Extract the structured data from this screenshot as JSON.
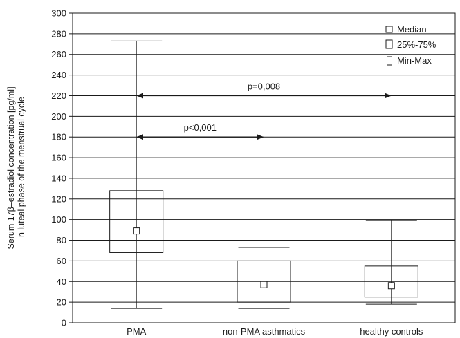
{
  "chart_data": {
    "type": "boxplot",
    "categories": [
      "PMA",
      "non-PMA asthmatics",
      "healthy controls"
    ],
    "series": [
      {
        "category": "PMA",
        "min": 14,
        "q1": 68,
        "median": 89,
        "q3": 128,
        "max": 273
      },
      {
        "category": "non-PMA asthmatics",
        "min": 14,
        "q1": 20,
        "median": 37,
        "q3": 60,
        "max": 73
      },
      {
        "category": "healthy controls",
        "min": 18,
        "q1": 25,
        "median": 36,
        "q3": 55,
        "max": 99
      }
    ],
    "ylabel_line1": "Serum 17β–estradiol concentration [pg/ml]",
    "ylabel_line2": "in luteal phase of the menstrual cycle",
    "ylim": [
      0,
      300
    ],
    "yticks": [
      0,
      20,
      40,
      60,
      80,
      100,
      120,
      140,
      160,
      180,
      200,
      220,
      240,
      260,
      280,
      300
    ],
    "grid": true,
    "legend": {
      "placement": "top-right",
      "items": [
        "Median",
        "25%-75%",
        "Min-Max"
      ]
    },
    "annotations": [
      {
        "label": "p=0,008",
        "from": "PMA",
        "to": "healthy controls",
        "y": 220
      },
      {
        "label": "p<0,001",
        "from": "PMA",
        "to": "non-PMA asthmatics",
        "y": 180
      }
    ]
  }
}
